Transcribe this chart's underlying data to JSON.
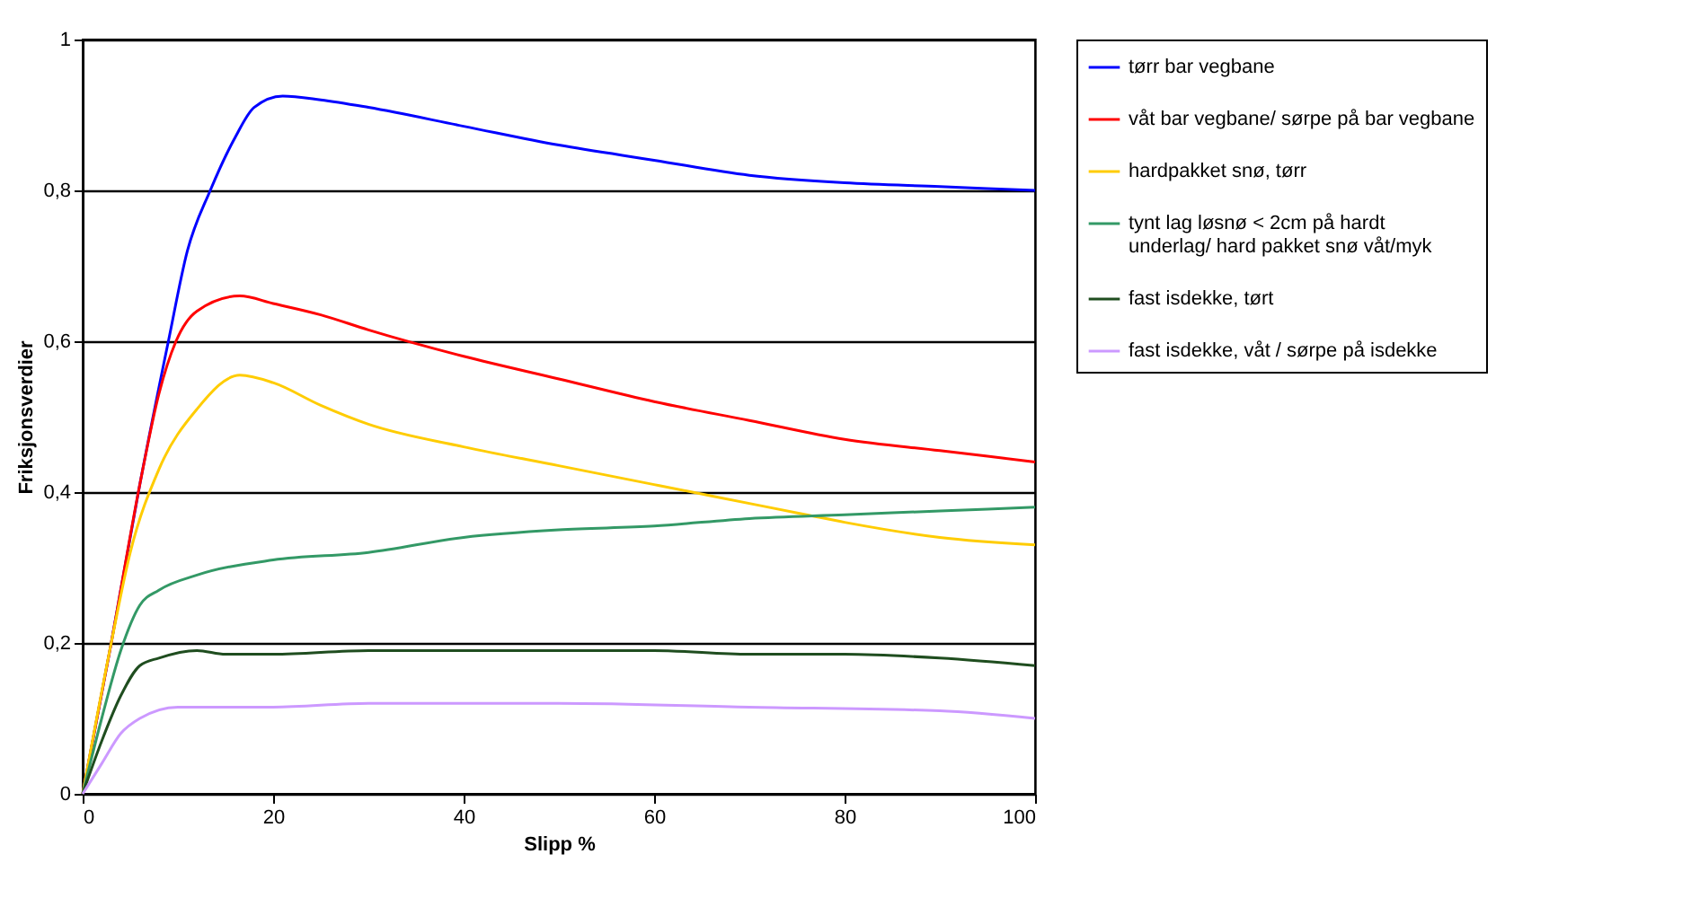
{
  "chart_data": {
    "type": "line",
    "xlabel": "Slipp %",
    "ylabel": "Friksjonsverdier",
    "xlim": [
      0,
      100
    ],
    "xticks": [
      0,
      20,
      40,
      60,
      80,
      100
    ],
    "ylim": [
      0,
      1
    ],
    "yticks": [
      0,
      {
        "value": 0.2,
        "label": "0,2"
      },
      {
        "value": 0.4,
        "label": "0,4"
      },
      {
        "value": 0.6,
        "label": "0,6"
      },
      {
        "value": 0.8,
        "label": "0,8"
      },
      1
    ],
    "grid": "y",
    "legend": "right",
    "line_style": "solid",
    "marker": "none",
    "series": [
      {
        "name": "tørr bar vegbane",
        "color": "#0000ff",
        "x": [
          0,
          3,
          6,
          9,
          11,
          13.4,
          16,
          18,
          21,
          25,
          30,
          40,
          50,
          60,
          70,
          80,
          90,
          100
        ],
        "values": [
          0,
          0.2,
          0.41,
          0.6,
          0.72,
          0.8,
          0.87,
          0.91,
          0.925,
          0.92,
          0.91,
          0.885,
          0.86,
          0.84,
          0.82,
          0.81,
          0.805,
          0.8
        ]
      },
      {
        "name": "våt bar vegbane/ sørpe på bar vegbane",
        "color": "#ff0000",
        "x": [
          0,
          3,
          6,
          8,
          9.8,
          12,
          16.5,
          20,
          25,
          30,
          40,
          50,
          60,
          70,
          80,
          90,
          100
        ],
        "values": [
          0,
          0.2,
          0.41,
          0.53,
          0.6,
          0.64,
          0.66,
          0.65,
          0.635,
          0.615,
          0.58,
          0.55,
          0.52,
          0.495,
          0.47,
          0.455,
          0.44
        ]
      },
      {
        "name": "hardpakket snø, tørr",
        "color": "#ffcc00",
        "x": [
          0,
          3,
          5,
          8,
          12,
          16.5,
          20,
          25,
          30,
          40,
          50,
          60,
          66,
          76,
          80,
          90,
          100
        ],
        "values": [
          0,
          0.2,
          0.32,
          0.43,
          0.51,
          0.555,
          0.545,
          0.515,
          0.49,
          0.46,
          0.435,
          0.41,
          0.395,
          0.37,
          0.36,
          0.34,
          0.33
        ]
      },
      {
        "name": "tynt lag løsnø < 2cm på hardt underlag/ hard pakket snø våt/myk",
        "color": "#339966",
        "x": [
          0,
          2,
          4,
          6,
          8,
          12,
          20,
          30,
          40,
          50,
          60,
          70,
          80,
          90,
          100
        ],
        "values": [
          0,
          0.1,
          0.19,
          0.25,
          0.27,
          0.29,
          0.31,
          0.32,
          0.34,
          0.35,
          0.355,
          0.365,
          0.37,
          0.375,
          0.38
        ]
      },
      {
        "name": "fast isdekke, tørt",
        "color": "#1f4d1f",
        "x": [
          0,
          2,
          4,
          6,
          8,
          12,
          15,
          20,
          30,
          50,
          60,
          70,
          80,
          90,
          100
        ],
        "values": [
          0,
          0.07,
          0.13,
          0.17,
          0.18,
          0.19,
          0.185,
          0.185,
          0.19,
          0.19,
          0.19,
          0.185,
          0.185,
          0.18,
          0.17
        ]
      },
      {
        "name": "fast isdekke, våt / sørpe på isdekke",
        "color": "#cc99ff",
        "x": [
          0,
          2,
          4,
          6,
          10,
          15,
          20,
          30,
          50,
          70,
          90,
          100
        ],
        "values": [
          0,
          0.04,
          0.08,
          0.1,
          0.115,
          0.115,
          0.115,
          0.12,
          0.12,
          0.115,
          0.11,
          0.1
        ]
      }
    ]
  }
}
